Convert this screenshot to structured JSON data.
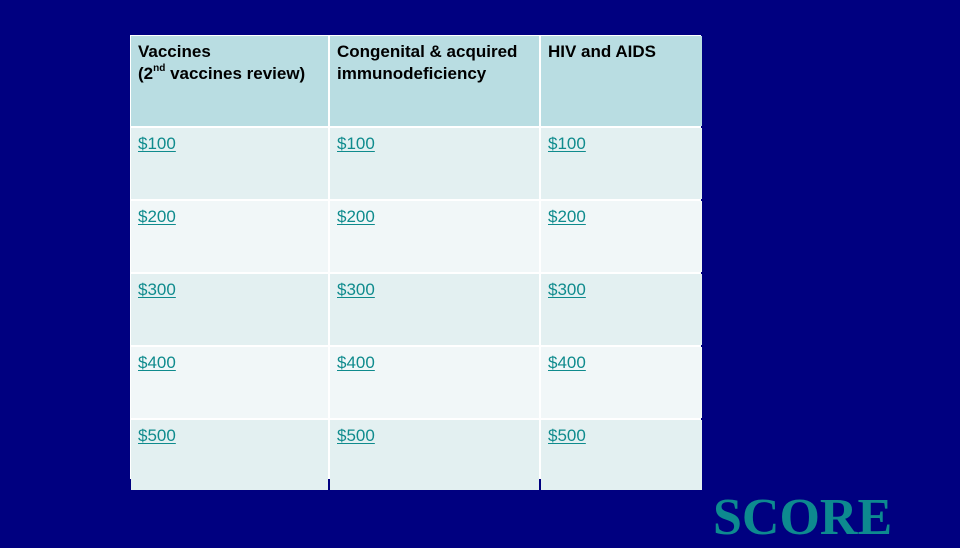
{
  "board": {
    "categories": [
      {
        "line1": "Vaccines",
        "line2_prefix": "(2",
        "line2_sup": "nd",
        "line2_suffix": " vaccines review)"
      },
      {
        "line1": "Congenital & acquired",
        "line2": "immunodeficiency"
      },
      {
        "line1": "HIV and AIDS"
      }
    ],
    "rows": [
      [
        "$100",
        "$100",
        "$100"
      ],
      [
        "$200",
        "$200",
        "$200"
      ],
      [
        "$300",
        "$300",
        "$300"
      ],
      [
        "$400",
        "$400",
        "$400"
      ],
      [
        "$500",
        "$500",
        "$500"
      ]
    ]
  },
  "score_label": "SCORE",
  "colors": {
    "background": "#000080",
    "header_fill": "#b9dde2",
    "row_fill_a": "#e3f0f1",
    "row_fill_b": "#f1f7f8",
    "link": "#0f8b8d",
    "score": "#0d8a8f"
  }
}
